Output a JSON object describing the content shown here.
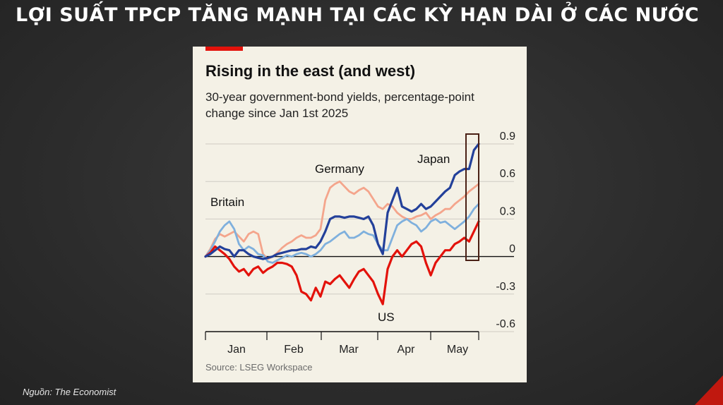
{
  "slide": {
    "title": "LỢI SUẤT TPCP TĂNG MẠNH TẠI CÁC KỲ HẠN DÀI Ở CÁC NƯỚC",
    "footer_source": "Nguồn: The Economist"
  },
  "chart_data": {
    "type": "line",
    "title": "Rising in the east (and west)",
    "subtitle": "30-year government-bond yields, percentage-point change since Jan 1st 2025",
    "source": "Source: LSEG Workspace",
    "x_tick_labels": [
      "Jan",
      "Feb",
      "Mar",
      "Apr",
      "May"
    ],
    "y_ticks": [
      0.9,
      0.6,
      0.3,
      0,
      -0.3,
      -0.6
    ],
    "y_tick_labels": [
      "0.9",
      "0.6",
      "0.3",
      "0",
      "-0.3",
      "-0.6"
    ],
    "ylim": [
      -0.6,
      0.9
    ],
    "grid": true,
    "highlight_note": "latest values boxed",
    "series": [
      {
        "name": "Britain",
        "color": "#7fb0dd",
        "values": [
          0.0,
          0.05,
          0.12,
          0.2,
          0.25,
          0.28,
          0.22,
          0.1,
          0.05,
          0.08,
          0.06,
          0.02,
          0.01,
          -0.04,
          -0.05,
          -0.03,
          -0.01,
          0.01,
          0.0,
          0.02,
          0.03,
          0.02,
          0.0,
          0.02,
          0.05,
          0.1,
          0.12,
          0.15,
          0.18,
          0.2,
          0.15,
          0.15,
          0.17,
          0.2,
          0.18,
          0.17,
          0.1,
          0.05,
          0.05,
          0.15,
          0.25,
          0.28,
          0.3,
          0.27,
          0.25,
          0.2,
          0.23,
          0.28,
          0.3,
          0.27,
          0.28,
          0.25,
          0.22,
          0.25,
          0.28,
          0.32,
          0.38,
          0.42
        ]
      },
      {
        "name": "Germany",
        "color": "#f4a58c",
        "values": [
          0.0,
          0.06,
          0.14,
          0.18,
          0.16,
          0.18,
          0.2,
          0.16,
          0.12,
          0.18,
          0.2,
          0.18,
          0.02,
          -0.02,
          0.0,
          0.03,
          0.07,
          0.1,
          0.12,
          0.15,
          0.17,
          0.15,
          0.15,
          0.17,
          0.22,
          0.45,
          0.55,
          0.58,
          0.6,
          0.56,
          0.52,
          0.5,
          0.53,
          0.55,
          0.52,
          0.46,
          0.4,
          0.38,
          0.42,
          0.4,
          0.35,
          0.32,
          0.3,
          0.3,
          0.32,
          0.33,
          0.35,
          0.3,
          0.33,
          0.35,
          0.38,
          0.38,
          0.42,
          0.45,
          0.48,
          0.52,
          0.55,
          0.58
        ]
      },
      {
        "name": "Japan",
        "color": "#23409a",
        "values": [
          0.0,
          0.02,
          0.05,
          0.08,
          0.06,
          0.05,
          0.0,
          0.05,
          0.05,
          0.02,
          0.0,
          -0.01,
          -0.02,
          -0.01,
          0.0,
          0.02,
          0.03,
          0.04,
          0.05,
          0.05,
          0.06,
          0.06,
          0.08,
          0.07,
          0.12,
          0.2,
          0.3,
          0.32,
          0.32,
          0.31,
          0.32,
          0.32,
          0.31,
          0.3,
          0.32,
          0.25,
          0.1,
          0.02,
          0.35,
          0.45,
          0.55,
          0.4,
          0.38,
          0.36,
          0.38,
          0.42,
          0.38,
          0.4,
          0.44,
          0.48,
          0.52,
          0.55,
          0.65,
          0.68,
          0.7,
          0.7,
          0.85,
          0.9
        ]
      },
      {
        "name": "US",
        "color": "#e3120b",
        "values": [
          0.0,
          0.03,
          0.08,
          0.05,
          0.02,
          -0.02,
          -0.08,
          -0.12,
          -0.1,
          -0.15,
          -0.1,
          -0.08,
          -0.13,
          -0.1,
          -0.08,
          -0.05,
          -0.05,
          -0.06,
          -0.08,
          -0.15,
          -0.28,
          -0.3,
          -0.35,
          -0.25,
          -0.32,
          -0.2,
          -0.22,
          -0.18,
          -0.15,
          -0.2,
          -0.25,
          -0.18,
          -0.12,
          -0.1,
          -0.15,
          -0.2,
          -0.3,
          -0.38,
          -0.1,
          0.0,
          0.05,
          0.0,
          0.05,
          0.1,
          0.12,
          0.08,
          -0.05,
          -0.15,
          -0.05,
          0.0,
          0.05,
          0.05,
          0.1,
          0.12,
          0.15,
          0.12,
          0.2,
          0.28
        ]
      }
    ],
    "series_labels_on_chart": {
      "Britain": "Britain",
      "Germany": "Germany",
      "Japan": "Japan",
      "US": "US"
    }
  }
}
